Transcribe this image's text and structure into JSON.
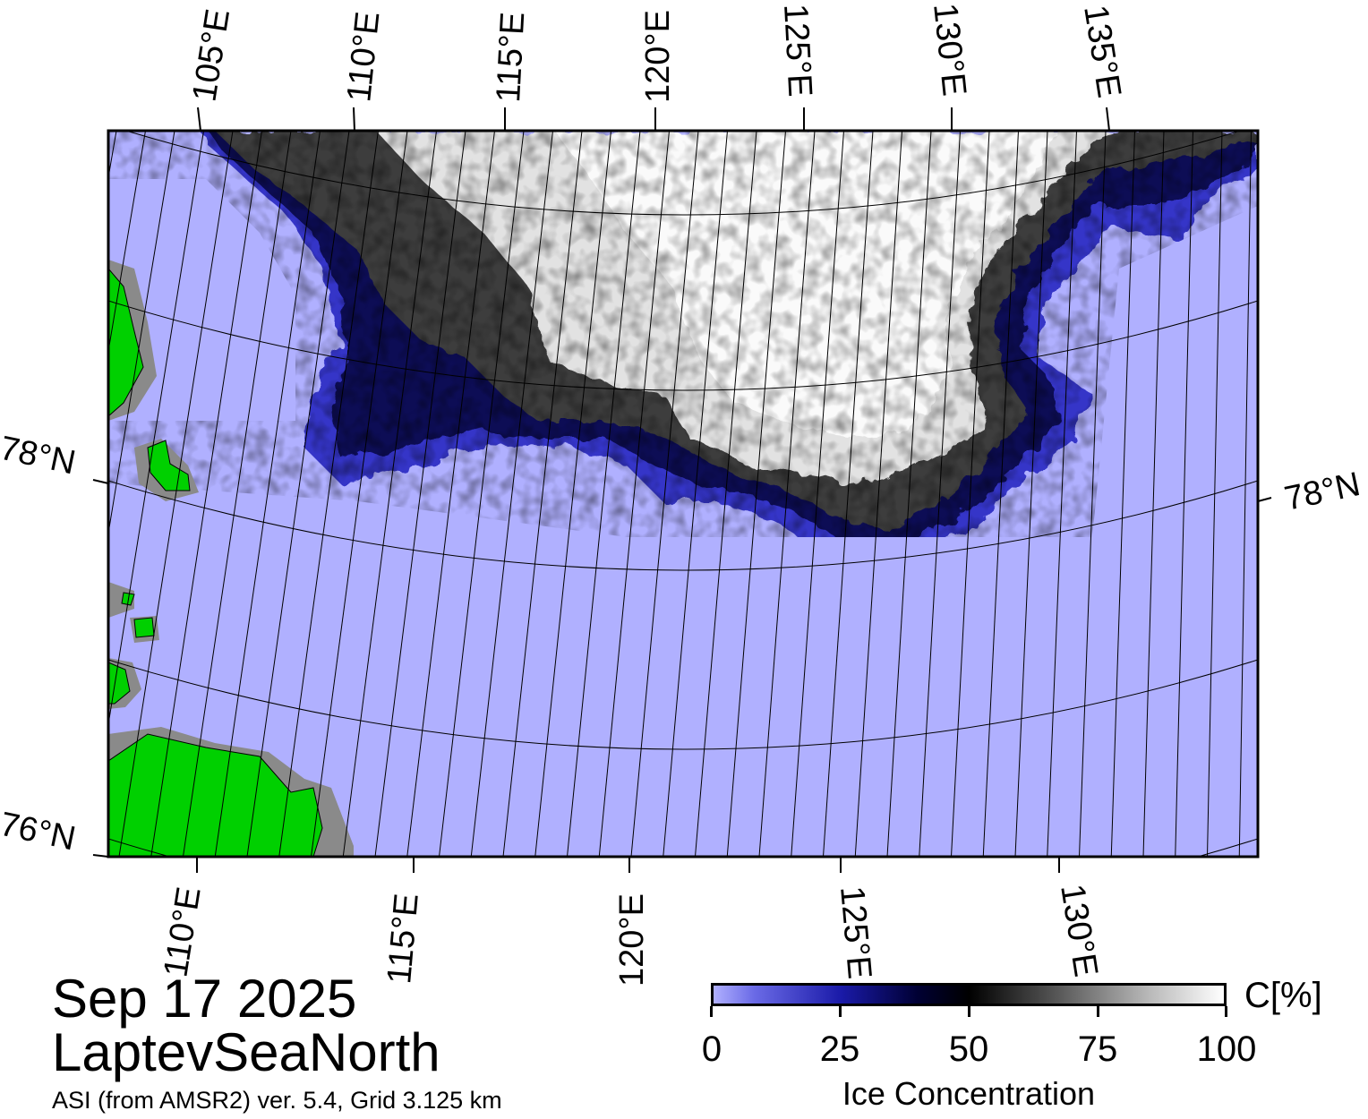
{
  "map": {
    "title_date": "Sep 17 2025",
    "region_name": "LaptevSeaNorth",
    "source_note": "ASI (from AMSR2) ver. 5.4,  Grid 3.125 km",
    "top_lon_labels": [
      "105°E",
      "110°E",
      "115°E",
      "120°E",
      "125°E",
      "130°E",
      "135°E"
    ],
    "bottom_lon_labels": [
      "110°E",
      "115°E",
      "120°E",
      "125°E",
      "130°E"
    ],
    "lat_labels": [
      "78°N",
      "78°N",
      "76°N"
    ],
    "colors": {
      "open_water": "#b0b0ff",
      "land": "#00d000",
      "coast_mask": "#8a8a8a",
      "ice_high": "#ffffff",
      "ice_low": "#000040"
    }
  },
  "colorbar": {
    "ticks": [
      "0",
      "25",
      "50",
      "75",
      "100"
    ],
    "unit_label": "C[%]",
    "title": "Ice Concentration"
  }
}
